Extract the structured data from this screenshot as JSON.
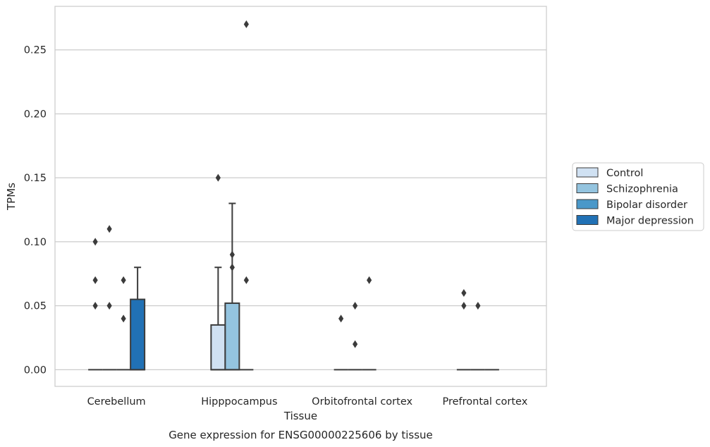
{
  "chart_data": {
    "type": "box",
    "caption": "Gene expression for ENSG00000225606 by tissue",
    "xlabel": "Tissue",
    "ylabel": "TPMs",
    "ylim": [
      -0.013,
      0.284
    ],
    "yticks": [
      0.0,
      0.05,
      0.1,
      0.15,
      0.2,
      0.25
    ],
    "ytick_labels": [
      "0.00",
      "0.05",
      "0.10",
      "0.15",
      "0.20",
      "0.25"
    ],
    "grid": "horizontal",
    "legend_position": "right",
    "categories": [
      "Cerebellum",
      "Hipppocampus",
      "Orbitofrontal cortex",
      "Prefrontal cortex"
    ],
    "series": [
      {
        "name": "Control",
        "color": "#d0e1f2",
        "boxes": [
          {
            "q1": 0,
            "median": 0,
            "q3": 0,
            "whisker_low": 0,
            "whisker_high": 0,
            "outliers": [
              0.05,
              0.07,
              0.1
            ]
          },
          {
            "q1": 0,
            "median": 0,
            "q3": 0.035,
            "whisker_low": 0,
            "whisker_high": 0.08,
            "outliers": [
              0.15
            ]
          },
          {
            "q1": 0,
            "median": 0,
            "q3": 0,
            "whisker_low": 0,
            "whisker_high": 0,
            "outliers": [
              0.04
            ]
          },
          {
            "q1": 0,
            "median": 0,
            "q3": 0,
            "whisker_low": 0,
            "whisker_high": 0,
            "outliers": [
              0.05,
              0.06
            ]
          }
        ]
      },
      {
        "name": "Schizophrenia",
        "color": "#94c4df",
        "boxes": [
          {
            "q1": 0,
            "median": 0,
            "q3": 0,
            "whisker_low": 0,
            "whisker_high": 0,
            "outliers": [
              0.05,
              0.11
            ]
          },
          {
            "q1": 0,
            "median": 0,
            "q3": 0.052,
            "whisker_low": 0,
            "whisker_high": 0.13,
            "outliers": [
              0.08,
              0.09
            ]
          },
          {
            "q1": 0,
            "median": 0,
            "q3": 0,
            "whisker_low": 0,
            "whisker_high": 0,
            "outliers": [
              0.02,
              0.05
            ]
          },
          {
            "q1": 0,
            "median": 0,
            "q3": 0,
            "whisker_low": 0,
            "whisker_high": 0,
            "outliers": [
              0.05
            ]
          }
        ]
      },
      {
        "name": "Bipolar disorder",
        "color": "#4a98c9",
        "boxes": [
          {
            "q1": 0,
            "median": 0,
            "q3": 0,
            "whisker_low": 0,
            "whisker_high": 0,
            "outliers": [
              0.04,
              0.07
            ]
          },
          {
            "q1": 0,
            "median": 0,
            "q3": 0,
            "whisker_low": 0,
            "whisker_high": 0,
            "outliers": [
              0.07,
              0.27
            ]
          },
          {
            "q1": 0,
            "median": 0,
            "q3": 0,
            "whisker_low": 0,
            "whisker_high": 0,
            "outliers": [
              0.07
            ]
          },
          {
            "q1": 0,
            "median": 0,
            "q3": 0,
            "whisker_low": 0,
            "whisker_high": 0,
            "outliers": []
          }
        ]
      },
      {
        "name": "Major depression",
        "color": "#2171b5",
        "boxes": [
          {
            "q1": 0,
            "median": 0,
            "q3": 0.055,
            "whisker_low": 0,
            "whisker_high": 0.08,
            "outliers": []
          },
          null,
          null,
          null
        ]
      }
    ]
  }
}
